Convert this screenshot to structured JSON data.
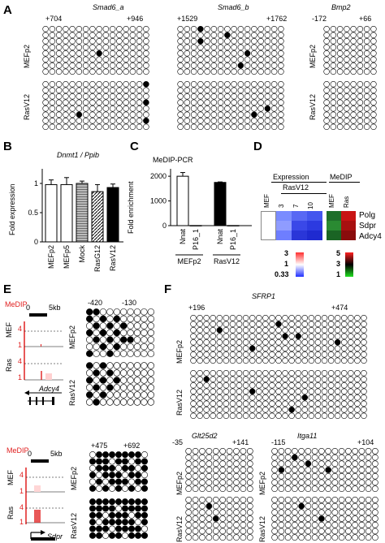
{
  "panels": {
    "A": {
      "label": "A",
      "groups": [
        {
          "title": "Smad6_a",
          "start": "+704",
          "end": "+946",
          "rows": [
            {
              "label": "MEFp2",
              "cols": 16,
              "lines": 8,
              "methylated": [
                [
                  4,
                  8
                ]
              ]
            },
            {
              "label": "RasV12",
              "cols": 16,
              "lines": 8,
              "methylated": [
                [
                  0,
                  15
                ],
                [
                  3,
                  15
                ],
                [
                  6,
                  15
                ],
                [
                  5,
                  5
                ]
              ]
            }
          ]
        },
        {
          "title": "Smad6_b",
          "start": "+1529",
          "end": "+1762",
          "rows": [
            {
              "label": "",
              "cols": 16,
              "lines": 8,
              "methylated": [
                [
                  0,
                  3
                ],
                [
                  1,
                  7
                ],
                [
                  2,
                  3
                ],
                [
                  4,
                  10
                ],
                [
                  6,
                  9
                ]
              ]
            },
            {
              "label": "",
              "cols": 16,
              "lines": 8,
              "methylated": [
                [
                  4,
                  13
                ],
                [
                  5,
                  11
                ]
              ]
            }
          ]
        },
        {
          "title": "Bmp2",
          "start": "-172",
          "end": "+66",
          "rows": [
            {
              "label": "MEFp2",
              "cols": 8,
              "lines": 8,
              "methylated": []
            },
            {
              "label": "RasV12",
              "cols": 8,
              "lines": 8,
              "methylated": []
            }
          ]
        }
      ]
    },
    "B": {
      "label": "B",
      "title": "Dnmt1 / Ppib",
      "ylabel": "Fold expression",
      "yticks": [
        "1",
        "0.5",
        "0"
      ]
    },
    "C": {
      "label": "C",
      "title": "MeDIP-PCR",
      "ylabel": "Fold enrichment",
      "yticks": [
        "2000",
        "1000",
        "0"
      ],
      "group_labels": [
        "MEFp2",
        "RasV12"
      ]
    },
    "D": {
      "label": "D",
      "expression_title": "Expression",
      "medip_title": "MeDIP",
      "mef_label": "MEF",
      "ras_group": "RasV12",
      "timepoints": [
        "3",
        "7",
        "10"
      ],
      "ras_label": "Ras",
      "genes": [
        "Polg",
        "Sdpr",
        "Adcy4"
      ],
      "expr_scale": [
        "3",
        "1",
        "0.33"
      ],
      "medip_scale": [
        "5",
        "3",
        "1"
      ]
    },
    "E": {
      "label": "E",
      "medip": "MeDIP",
      "scale": "5kb",
      "mef": "MEF",
      "ras": "Ras",
      "y4": "4",
      "y1": "1",
      "gene1": "Adcy4",
      "gene2": "Sdpr",
      "top_start": "-420",
      "top_end": "-130",
      "bot_start": "+475",
      "bot_end": "+692",
      "row1": "MEFp2",
      "row2": "RasV12"
    },
    "F": {
      "label": "F",
      "sfrp": {
        "title": "SFRP1",
        "start": "+196",
        "end": "+474"
      },
      "glt": {
        "title": "Glt25d2",
        "start": "-35",
        "end": "+141"
      },
      "itga": {
        "title": "Itga11",
        "start": "-115",
        "end": "+104"
      },
      "row1": "MEFp2",
      "row2": "RasV12"
    }
  },
  "chart_data": [
    {
      "type": "bar",
      "title": "Dnmt1 / Ppib",
      "ylabel": "Fold expression",
      "categories": [
        "MEFp2",
        "MEFp5",
        "Mock",
        "RasG12",
        "RasV12"
      ],
      "values": [
        0.98,
        0.98,
        1.0,
        0.86,
        0.93
      ],
      "errors": [
        0.08,
        0.12,
        0.04,
        0.12,
        0.06
      ],
      "ylim": [
        0,
        1.25
      ]
    },
    {
      "type": "bar",
      "title": "MeDIP-PCR",
      "ylabel": "Fold enrichment",
      "categories": [
        "Nnat",
        "P16_1",
        "Nnat",
        "P16_1"
      ],
      "groups": [
        "MEFp2",
        "MEFp2",
        "RasV12",
        "RasV12"
      ],
      "values": [
        2000,
        5,
        1750,
        5
      ],
      "errors": [
        150,
        0,
        20,
        0
      ],
      "ylim": [
        0,
        2300
      ]
    }
  ]
}
